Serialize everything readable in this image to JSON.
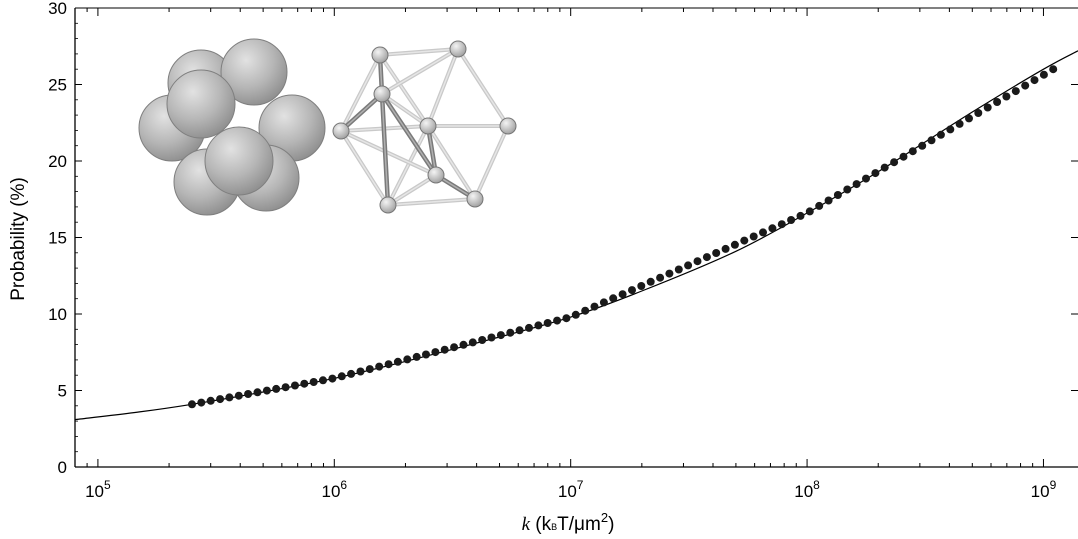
{
  "chart_data": {
    "type": "scatter",
    "title": "",
    "xlabel": {
      "var": "k",
      "open": " (k",
      "sub": "B",
      "mid": "T/",
      "mu": "μ",
      "m": "m",
      "sup": "2",
      "close": ")"
    },
    "ylabel": "Probability (%)",
    "xscale": "log",
    "xlim": [
      80000,
      1400000000
    ],
    "ylim": [
      0,
      30
    ],
    "xticks": [
      {
        "value": 100000,
        "base": "10",
        "exp": "5"
      },
      {
        "value": 1000000,
        "base": "10",
        "exp": "6"
      },
      {
        "value": 10000000,
        "base": "10",
        "exp": "7"
      },
      {
        "value": 100000000,
        "base": "10",
        "exp": "8"
      },
      {
        "value": 1000000000,
        "base": "10",
        "exp": "9"
      }
    ],
    "yticks": [
      0,
      5,
      10,
      15,
      20,
      25,
      30
    ],
    "grid": false,
    "legend": "none",
    "series": [
      {
        "kind": "line",
        "x": [
          80000,
          150000,
          250000,
          500000,
          1000000,
          2000000,
          5000000,
          10000000,
          20000000,
          50000000,
          100000000,
          200000000,
          500000000,
          1000000000,
          1400000000
        ],
        "y": [
          3.1,
          3.6,
          4.1,
          4.9,
          5.8,
          6.9,
          8.5,
          9.8,
          11.5,
          14.1,
          16.6,
          19.3,
          23.2,
          26.0,
          27.2
        ]
      },
      {
        "kind": "points",
        "x_start": 250000,
        "x_end": 1100000000,
        "count": 93,
        "y_at": [
          {
            "x": 250000,
            "y": 4.1
          },
          {
            "x": 1000000,
            "y": 5.8
          },
          {
            "x": 10000000,
            "y": 9.8
          },
          {
            "x": 100000000,
            "y": 16.6
          },
          {
            "x": 1100000000,
            "y": 26.0
          }
        ]
      }
    ],
    "colors": {
      "line": "#000000",
      "points": "#1a1a1a",
      "sphere": "#a8a8a8",
      "rod": "#c8c8c8"
    },
    "insets": [
      {
        "kind": "sphere-cluster",
        "icon": "sphere-cluster-icon"
      },
      {
        "kind": "rod-frame",
        "icon": "icosahedron-frame-icon"
      }
    ]
  }
}
